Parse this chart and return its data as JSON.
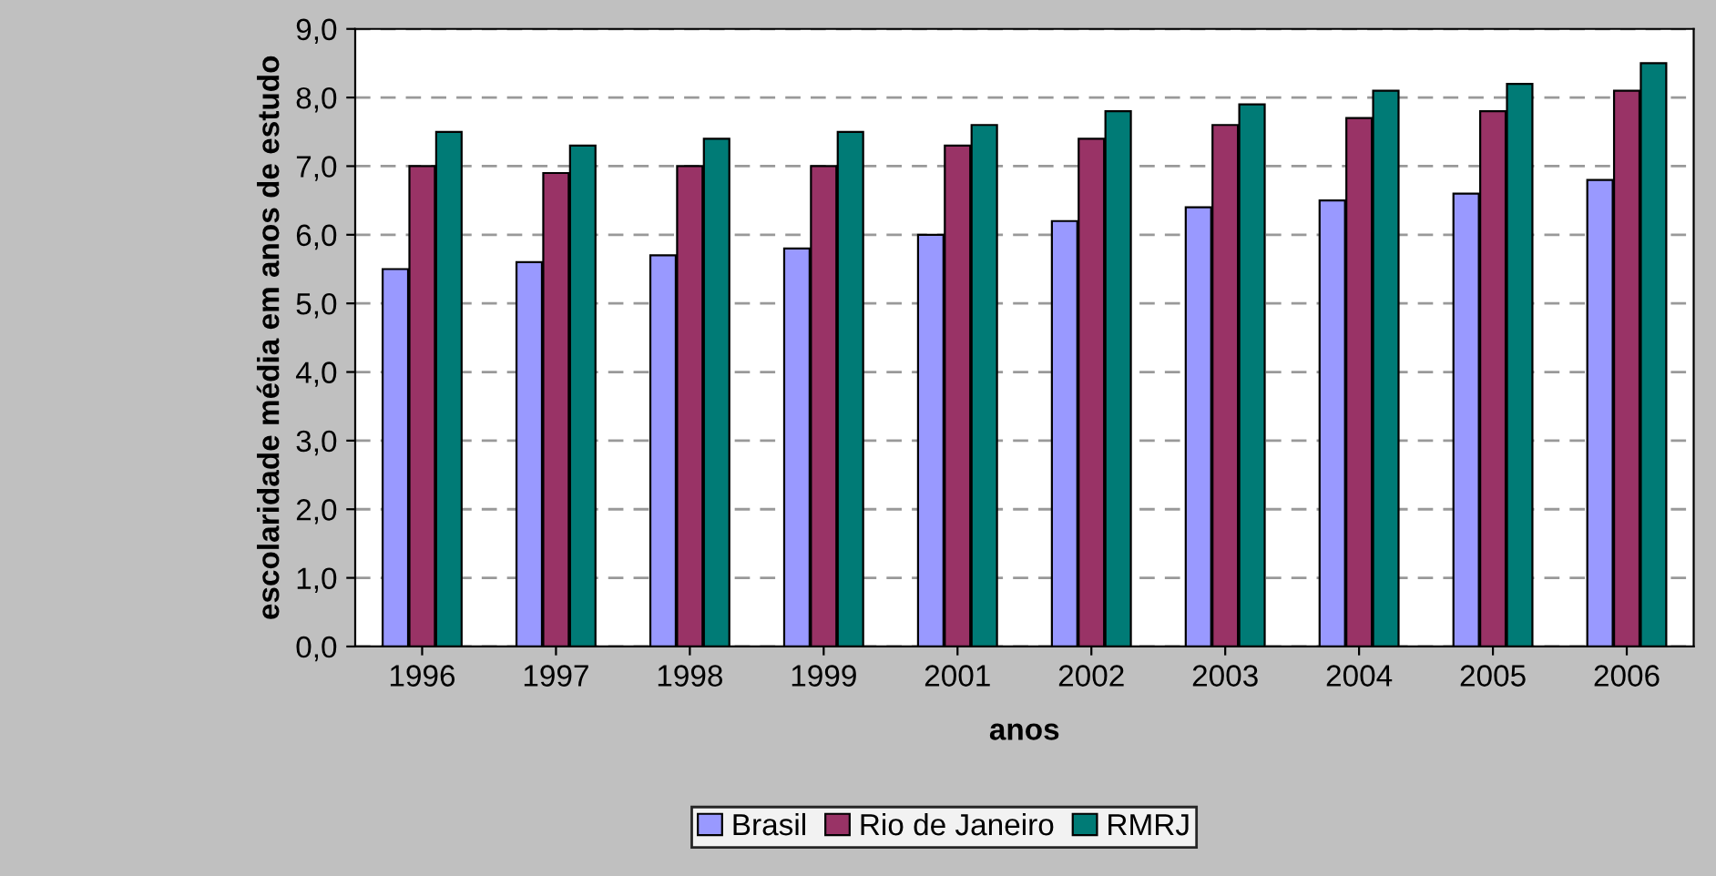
{
  "chart_data": {
    "type": "bar",
    "xlabel": "anos",
    "ylabel": "escolaridade média em anos de estudo",
    "categories": [
      "1996",
      "1997",
      "1998",
      "1999",
      "2001",
      "2002",
      "2003",
      "2004",
      "2005",
      "2006"
    ],
    "series": [
      {
        "name": "Brasil",
        "color": "#9999ff",
        "values": [
          5.5,
          5.6,
          5.7,
          5.8,
          6.0,
          6.2,
          6.4,
          6.5,
          6.6,
          6.8
        ]
      },
      {
        "name": "Rio de Janeiro",
        "color": "#993366",
        "values": [
          7.0,
          6.9,
          7.0,
          7.0,
          7.3,
          7.4,
          7.6,
          7.7,
          7.8,
          8.1
        ]
      },
      {
        "name": "RMRJ",
        "color": "#007b76",
        "values": [
          7.5,
          7.3,
          7.4,
          7.5,
          7.6,
          7.8,
          7.9,
          8.1,
          8.2,
          8.5
        ]
      }
    ],
    "ylim": [
      0,
      9
    ],
    "yticks": [
      {
        "value": 0,
        "label": "0,0"
      },
      {
        "value": 1,
        "label": "1,0"
      },
      {
        "value": 2,
        "label": "2,0"
      },
      {
        "value": 3,
        "label": "3,0"
      },
      {
        "value": 4,
        "label": "4,0"
      },
      {
        "value": 5,
        "label": "5,0"
      },
      {
        "value": 6,
        "label": "6,0"
      },
      {
        "value": 7,
        "label": "7,0"
      },
      {
        "value": 8,
        "label": "8,0"
      },
      {
        "value": 9,
        "label": "9,0"
      }
    ],
    "grid": "y",
    "legend": "bottom"
  }
}
